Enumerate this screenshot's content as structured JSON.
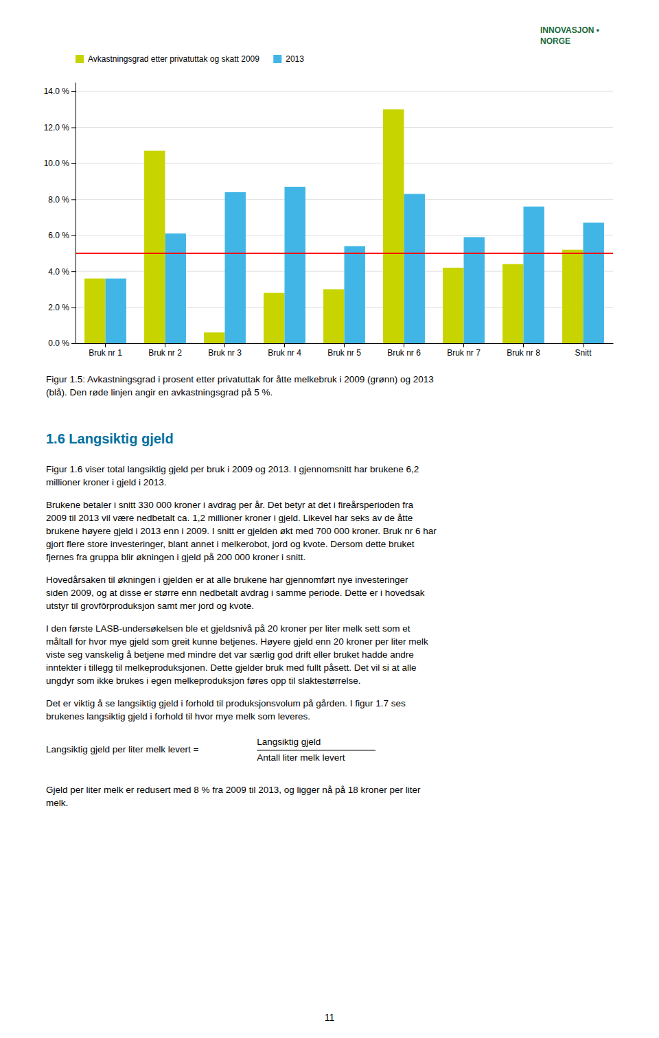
{
  "chart_data": {
    "type": "bar",
    "categories": [
      "Bruk nr 1",
      "Bruk nr 2",
      "Bruk nr 3",
      "Bruk nr 4",
      "Bruk nr 5",
      "Bruk nr 6",
      "Bruk nr 7",
      "Bruk nr 8",
      "Snitt"
    ],
    "series": [
      {
        "name": "Avkastningsgrad etter privatuttak og skatt 2009",
        "color": "#c8d400",
        "values": [
          3.6,
          10.7,
          0.6,
          2.8,
          3.0,
          13.0,
          4.2,
          4.4,
          5.2
        ]
      },
      {
        "name": "2013",
        "color": "#41b6e6",
        "values": [
          3.6,
          6.1,
          8.4,
          8.7,
          5.4,
          8.3,
          5.9,
          7.6,
          6.7
        ]
      }
    ],
    "hline": {
      "value": 5.0,
      "color": "#ff0000"
    },
    "ylim": [
      0,
      14.5
    ],
    "yticks": [
      {
        "value": 0.0,
        "label": "0.0 %"
      },
      {
        "value": 2.0,
        "label": "2.0 %"
      },
      {
        "value": 4.0,
        "label": "4.0 %"
      },
      {
        "value": 6.0,
        "label": "6.0 %"
      },
      {
        "value": 8.0,
        "label": "8.0 %"
      },
      {
        "value": 10.0,
        "label": "10.0 %"
      },
      {
        "value": 12.0,
        "label": "12.0 %"
      },
      {
        "value": 14.0,
        "label": "14.0 %"
      }
    ],
    "grid": true,
    "legend": "upper left"
  },
  "page": {
    "logo_text_1": "INNOVASJON •",
    "logo_text_2": "NORGE",
    "logo_color": "#1a6b3c",
    "caption_text": "Figur 1.5: Avkastningsgrad i prosent etter privatuttak for åtte melkebruk i 2009 (grønn) og 2013\n(blå). Den røde linjen angir en avkastningsgrad på 5 %.",
    "section_heading": "1.6 Langsiktig gjeld",
    "section_heading_color": "#0070a0",
    "body_text_1": "Figur 1.6 viser total langsiktig gjeld per bruk i 2009 og 2013. I gjennomsnitt har brukene 6,2\nmillioner kroner i gjeld i 2013.",
    "body_text_2": "Brukene betaler i snitt 330 000 kroner i avdrag per år. Det betyr at det i fireårsperioden fra\n2009 til 2013 vil være nedbetalt ca. 1,2 millioner kroner i gjeld. Likevel har seks av de åtte\nbrukene høyere gjeld i 2013 enn i 2009. I snitt er gjelden økt med 700 000 kroner. Bruk nr 6 har\ngjort flere store investeringer, blant annet i melkerobot, jord og kvote. Dersom dette bruket\nfjernes fra gruppa blir økningen i gjeld på 200 000 kroner i snitt.",
    "body_text_3": "Hovedårsaken til økningen i gjelden er at alle brukene har gjennomført nye investeringer\nsiden 2009, og at disse er større enn nedbetalt avdrag i samme periode. Dette er i hovedsak\nutstyr til grovfôrproduksjon samt mer jord og kvote.",
    "body_text_4": "I den første LASB-undersøkelsen ble et gjeldsnivå på 20 kroner per liter melk sett som et\nmåltall for hvor mye gjeld som greit kunne betjenes. Høyere gjeld enn 20 kroner per liter melk\nviste seg vanskelig å betjene med mindre det var særlig god drift eller bruket hadde andre\ninntekter i tillegg til melkeproduksjonen. Dette gjelder bruk med fullt påsett. Det vil si at alle\nungdyr som ikke brukes i egen melkeproduksjon føres opp til slaktestørrelse.",
    "body_text_5": "Det er viktig å se langsiktig gjeld i forhold til produksjonsvolum på gården. I figur 1.7 ses\nbrukenes langsiktig gjeld i forhold til hvor mye melk som leveres.",
    "formula_left": "Langsiktig gjeld per liter melk levert =",
    "formula_numerator": "Langsiktig gjeld",
    "formula_denominator": "Antall liter melk levert",
    "body_text_6": "Gjeld per liter melk er redusert med 8 % fra 2009 til 2013, og ligger nå på 18 kroner per liter\nmelk.",
    "page_number": "11"
  }
}
